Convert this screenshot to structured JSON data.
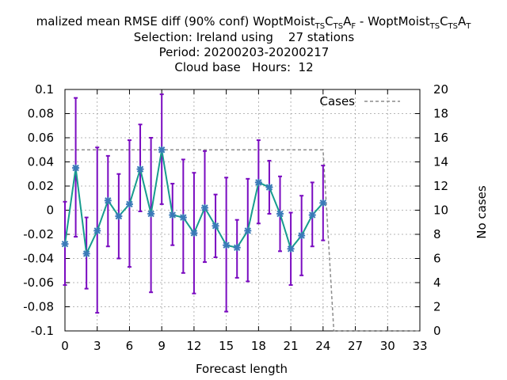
{
  "chart_data": {
    "type": "line",
    "title": {
      "line1_main": "malized mean RMSE diff (90% conf) WoptMoist",
      "line1_sub1": "TS",
      "line1_mid1": "C",
      "line1_sub2": "TS",
      "line1_mid2": "A",
      "line1_sub3": "F",
      "line1_sep": " - WoptMoist",
      "line1_sub4": "TS",
      "line1_mid3": "C",
      "line1_sub5": "TS",
      "line1_mid4": "A",
      "line1_sub6": "T",
      "line2": "Selection: Ireland using    27 stations",
      "line3": "Period: 20200203-20200217",
      "line4": "Cloud base   Hours:  12"
    },
    "xlabel": "Forecast length",
    "ylabel_right": "No cases",
    "xlim": [
      0,
      33
    ],
    "ylim": [
      -0.1,
      0.1
    ],
    "y2lim": [
      0,
      20
    ],
    "x_ticks": [
      "0",
      "3",
      "6",
      "9",
      "12",
      "15",
      "18",
      "21",
      "24",
      "27",
      "30",
      "33"
    ],
    "y_ticks": [
      "0.1",
      "0.08",
      "0.06",
      "0.04",
      "0.02",
      "0",
      "-0.02",
      "-0.04",
      "-0.06",
      "-0.08",
      "-0.1"
    ],
    "y2_ticks": [
      "20",
      "18",
      "16",
      "14",
      "12",
      "10",
      "8",
      "6",
      "4",
      "2",
      "0"
    ],
    "grid": true,
    "legend": {
      "position": "top-right",
      "label": "Cases"
    },
    "series": [
      {
        "x": [
          0,
          1,
          2,
          3,
          4,
          5,
          6,
          7,
          8,
          9,
          10,
          11,
          12,
          13,
          14,
          15,
          16,
          17,
          18,
          19,
          20,
          21,
          22,
          23,
          24
        ],
        "y": [
          -0.028,
          0.035,
          -0.036,
          -0.017,
          0.008,
          -0.005,
          0.005,
          0.034,
          -0.003,
          0.05,
          -0.004,
          -0.006,
          -0.019,
          0.002,
          -0.013,
          -0.029,
          -0.031,
          -0.017,
          0.023,
          0.019,
          -0.003,
          -0.032,
          -0.021,
          -0.004,
          0.006
        ],
        "err_low": [
          -0.062,
          -0.022,
          -0.065,
          -0.085,
          -0.03,
          -0.04,
          -0.047,
          -0.001,
          -0.068,
          0.005,
          -0.029,
          -0.052,
          -0.069,
          -0.043,
          -0.039,
          -0.084,
          -0.056,
          -0.059,
          -0.011,
          -0.003,
          -0.034,
          -0.062,
          -0.054,
          -0.03,
          -0.025
        ],
        "err_high": [
          0.007,
          0.093,
          -0.006,
          0.052,
          0.045,
          0.03,
          0.058,
          0.071,
          0.06,
          0.096,
          0.022,
          0.042,
          0.031,
          0.049,
          0.013,
          0.027,
          -0.008,
          0.026,
          0.058,
          0.041,
          0.028,
          -0.002,
          0.012,
          0.023,
          0.037
        ],
        "color": "#7a0bc0",
        "line_color": "#179c8e",
        "marker_color": "#3a7ab8"
      },
      {
        "name": "Cases",
        "axis": "y2",
        "x": [
          0,
          24,
          25,
          33
        ],
        "y": [
          15,
          15,
          0,
          0
        ],
        "color": "#8c8c8c",
        "dash": true
      }
    ]
  }
}
